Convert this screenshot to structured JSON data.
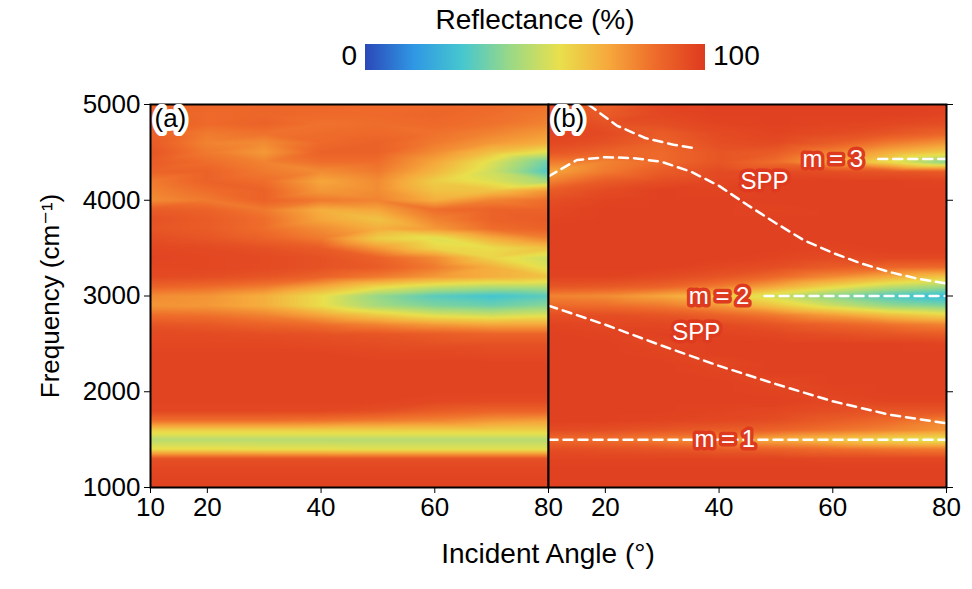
{
  "xlabel": "Incident Angle (°)",
  "ylabel": "Frequency (cm⁻¹)",
  "colorbar": {
    "label": "Reflectance (%)",
    "range": [
      0,
      100
    ],
    "ticks": [
      0,
      100
    ]
  },
  "chart_data": [
    {
      "type": "heatmap",
      "title": "(a)",
      "xlim": [
        10,
        80
      ],
      "ylim": [
        1000,
        5000
      ],
      "xticks": [
        10,
        20,
        40,
        60,
        80
      ],
      "yticks": [
        1000,
        2000,
        3000,
        4000,
        5000
      ],
      "x": [
        10,
        20,
        30,
        40,
        50,
        60,
        70,
        80
      ],
      "y": [
        1000,
        1100,
        1200,
        1300,
        1400,
        1500,
        1600,
        1700,
        1800,
        1900,
        2000,
        2100,
        2200,
        2300,
        2400,
        2500,
        2600,
        2700,
        2800,
        2900,
        3000,
        3100,
        3200,
        3300,
        3400,
        3500,
        3600,
        3700,
        3800,
        3900,
        4000,
        4100,
        4200,
        4300,
        4400,
        4500,
        4600,
        4700,
        4800,
        4900,
        5000
      ],
      "values": [
        [
          97,
          97,
          97,
          97,
          97,
          97,
          97,
          97
        ],
        [
          97,
          97,
          97,
          97,
          97,
          97,
          97,
          97
        ],
        [
          96,
          96,
          96,
          96,
          96,
          96,
          96,
          96
        ],
        [
          93,
          93,
          93,
          93,
          93,
          93,
          93,
          93
        ],
        [
          58,
          58,
          57,
          57,
          56,
          56,
          56,
          56
        ],
        [
          48,
          48,
          48,
          48,
          48,
          48,
          48,
          48
        ],
        [
          62,
          62,
          62,
          62,
          62,
          62,
          62,
          62
        ],
        [
          85,
          85,
          85,
          84,
          82,
          80,
          76,
          74
        ],
        [
          96,
          96,
          96,
          96,
          94,
          90,
          88,
          88
        ],
        [
          97,
          97,
          97,
          97,
          97,
          96,
          95,
          95
        ],
        [
          97,
          97,
          97,
          97,
          97,
          97,
          97,
          97
        ],
        [
          97,
          97,
          97,
          97,
          97,
          97,
          97,
          97
        ],
        [
          97,
          97,
          97,
          97,
          97,
          97,
          97,
          97
        ],
        [
          97,
          97,
          97,
          97,
          97,
          97,
          97,
          97
        ],
        [
          97,
          97,
          97,
          97,
          96,
          96,
          95,
          95
        ],
        [
          96,
          96,
          96,
          95,
          94,
          93,
          93,
          93
        ],
        [
          95,
          95,
          94,
          93,
          92,
          90,
          88,
          88
        ],
        [
          92,
          91,
          88,
          85,
          80,
          75,
          72,
          72
        ],
        [
          85,
          84,
          80,
          72,
          63,
          55,
          52,
          55
        ],
        [
          76,
          75,
          70,
          58,
          45,
          38,
          35,
          40
        ],
        [
          78,
          76,
          70,
          58,
          42,
          32,
          28,
          32
        ],
        [
          88,
          86,
          82,
          72,
          60,
          52,
          48,
          48
        ],
        [
          95,
          94,
          92,
          88,
          82,
          75,
          70,
          65
        ],
        [
          96,
          96,
          95,
          93,
          90,
          82,
          70,
          55
        ],
        [
          97,
          96,
          95,
          93,
          88,
          78,
          60,
          52
        ],
        [
          96,
          95,
          93,
          90,
          75,
          60,
          58,
          65
        ],
        [
          94,
          92,
          88,
          82,
          62,
          55,
          70,
          80
        ],
        [
          92,
          90,
          85,
          78,
          70,
          75,
          85,
          88
        ],
        [
          93,
          90,
          85,
          72,
          65,
          80,
          88,
          90
        ],
        [
          90,
          88,
          82,
          70,
          72,
          85,
          88,
          88
        ],
        [
          78,
          82,
          88,
          82,
          80,
          70,
          80,
          85
        ],
        [
          80,
          85,
          88,
          75,
          78,
          65,
          65,
          75
        ],
        [
          82,
          88,
          85,
          72,
          78,
          62,
          55,
          45
        ],
        [
          88,
          88,
          82,
          78,
          82,
          68,
          52,
          30
        ],
        [
          90,
          85,
          80,
          85,
          85,
          72,
          55,
          35
        ],
        [
          92,
          82,
          75,
          88,
          88,
          78,
          65,
          55
        ],
        [
          90,
          80,
          78,
          86,
          88,
          82,
          75,
          70
        ],
        [
          88,
          82,
          84,
          85,
          86,
          84,
          80,
          75
        ],
        [
          90,
          86,
          88,
          84,
          85,
          86,
          84,
          80
        ],
        [
          88,
          86,
          87,
          86,
          86,
          87,
          85,
          82
        ],
        [
          88,
          87,
          87,
          87,
          86,
          86,
          86,
          84
        ]
      ]
    },
    {
      "type": "heatmap",
      "title": "(b)",
      "tick_labels": "x",
      "xlim": [
        10,
        80
      ],
      "ylim": [
        1000,
        5000
      ],
      "xticks": [
        20,
        40,
        60,
        80
      ],
      "yticks": [
        1000,
        2000,
        3000,
        4000,
        5000
      ],
      "x": [
        10,
        20,
        30,
        40,
        50,
        60,
        70,
        80
      ],
      "y": [
        1000,
        1100,
        1200,
        1300,
        1400,
        1500,
        1600,
        1700,
        1800,
        1900,
        2000,
        2100,
        2200,
        2300,
        2400,
        2500,
        2600,
        2700,
        2800,
        2900,
        3000,
        3100,
        3200,
        3300,
        3400,
        3500,
        3600,
        3700,
        3800,
        3900,
        4000,
        4100,
        4200,
        4300,
        4400,
        4500,
        4600,
        4700,
        4800,
        4900,
        5000
      ],
      "values": [
        [
          98,
          98,
          98,
          98,
          98,
          98,
          98,
          98
        ],
        [
          98,
          98,
          98,
          98,
          98,
          98,
          98,
          98
        ],
        [
          98,
          98,
          98,
          98,
          98,
          98,
          98,
          98
        ],
        [
          97,
          97,
          97,
          97,
          97,
          96,
          96,
          96
        ],
        [
          94,
          93,
          92,
          90,
          88,
          85,
          83,
          82
        ],
        [
          86,
          84,
          80,
          76,
          70,
          64,
          58,
          55
        ],
        [
          95,
          94,
          92,
          90,
          88,
          84,
          80,
          76
        ],
        [
          98,
          98,
          97,
          96,
          94,
          90,
          86,
          80
        ],
        [
          98,
          98,
          98,
          97,
          96,
          94,
          92,
          92
        ],
        [
          98,
          98,
          98,
          98,
          98,
          96,
          97,
          97
        ],
        [
          98,
          98,
          98,
          98,
          97,
          97,
          98,
          98
        ],
        [
          98,
          98,
          98,
          98,
          96,
          98,
          98,
          98
        ],
        [
          98,
          98,
          98,
          97,
          98,
          98,
          98,
          98
        ],
        [
          98,
          98,
          98,
          96,
          98,
          98,
          98,
          98
        ],
        [
          98,
          98,
          97,
          98,
          98,
          98,
          98,
          98
        ],
        [
          98,
          98,
          96,
          98,
          98,
          98,
          98,
          97
        ],
        [
          98,
          97,
          98,
          97,
          96,
          94,
          92,
          90
        ],
        [
          97,
          96,
          96,
          95,
          92,
          88,
          84,
          80
        ],
        [
          94,
          94,
          92,
          88,
          82,
          74,
          66,
          60
        ],
        [
          86,
          85,
          82,
          75,
          64,
          52,
          42,
          38
        ],
        [
          80,
          78,
          72,
          64,
          52,
          40,
          30,
          24
        ],
        [
          92,
          91,
          88,
          82,
          72,
          60,
          50,
          44
        ],
        [
          97,
          97,
          95,
          92,
          86,
          78,
          70,
          64
        ],
        [
          98,
          98,
          98,
          96,
          94,
          90,
          87,
          86
        ],
        [
          98,
          98,
          98,
          98,
          97,
          95,
          96,
          96
        ],
        [
          98,
          98,
          98,
          98,
          98,
          97,
          98,
          98
        ],
        [
          98,
          98,
          98,
          98,
          98,
          98,
          98,
          98
        ],
        [
          98,
          98,
          98,
          98,
          98,
          98,
          98,
          98
        ],
        [
          97,
          98,
          98,
          98,
          98,
          98,
          98,
          98
        ],
        [
          96,
          98,
          98,
          98,
          97,
          98,
          98,
          98
        ],
        [
          94,
          97,
          98,
          98,
          98,
          98,
          98,
          98
        ],
        [
          90,
          95,
          98,
          97,
          98,
          98,
          98,
          98
        ],
        [
          80,
          90,
          94,
          96,
          98,
          98,
          98,
          97
        ],
        [
          72,
          82,
          90,
          95,
          95,
          94,
          92,
          90
        ],
        [
          82,
          80,
          86,
          92,
          85,
          72,
          58,
          40
        ],
        [
          92,
          88,
          86,
          92,
          90,
          80,
          70,
          62
        ],
        [
          96,
          93,
          88,
          94,
          95,
          90,
          82,
          76
        ],
        [
          97,
          95,
          90,
          95,
          97,
          95,
          92,
          88
        ],
        [
          97,
          93,
          94,
          97,
          98,
          97,
          96,
          94
        ],
        [
          96,
          90,
          96,
          98,
          98,
          98,
          98,
          97
        ],
        [
          95,
          88,
          97,
          98,
          98,
          98,
          98,
          98
        ]
      ],
      "lines": [
        {
          "x": [
            10,
            15,
            20,
            25,
            30,
            35,
            40,
            45,
            50,
            55,
            60,
            65,
            70,
            75,
            80
          ],
          "y": [
            4250,
            4420,
            4450,
            4440,
            4400,
            4300,
            4150,
            3950,
            3760,
            3580,
            3450,
            3340,
            3250,
            3180,
            3130
          ],
          "color": "#ffffff",
          "line_style": "dashed"
        },
        {
          "x": [
            10,
            20,
            30,
            40,
            50,
            60,
            70,
            80
          ],
          "y": [
            2900,
            2700,
            2480,
            2270,
            2080,
            1900,
            1760,
            1670
          ],
          "color": "#ffffff",
          "line_style": "dashed"
        },
        {
          "x": [
            17,
            22,
            27,
            32,
            36
          ],
          "y": [
            5000,
            4780,
            4650,
            4580,
            4540
          ],
          "color": "#ffffff",
          "line_style": "dashed"
        },
        {
          "x": [
            10,
            80
          ],
          "y": [
            1500,
            1500
          ],
          "color": "#ffffff",
          "line_style": "dashed"
        },
        {
          "x": [
            48,
            80
          ],
          "y": [
            3000,
            3000
          ],
          "color": "#ffffff",
          "line_style": "dashed"
        },
        {
          "x": [
            68,
            80
          ],
          "y": [
            4430,
            4430
          ],
          "color": "#ffffff",
          "line_style": "dashed"
        }
      ],
      "annotations": [
        {
          "text": "m = 1",
          "x": 41,
          "y": 1500
        },
        {
          "text": "m = 2",
          "x": 40,
          "y": 3000
        },
        {
          "text": "m = 3",
          "x": 60,
          "y": 4430
        },
        {
          "text": "SPP",
          "x": 48,
          "y": 4200
        },
        {
          "text": "SPP",
          "x": 36,
          "y": 2620
        }
      ]
    }
  ]
}
